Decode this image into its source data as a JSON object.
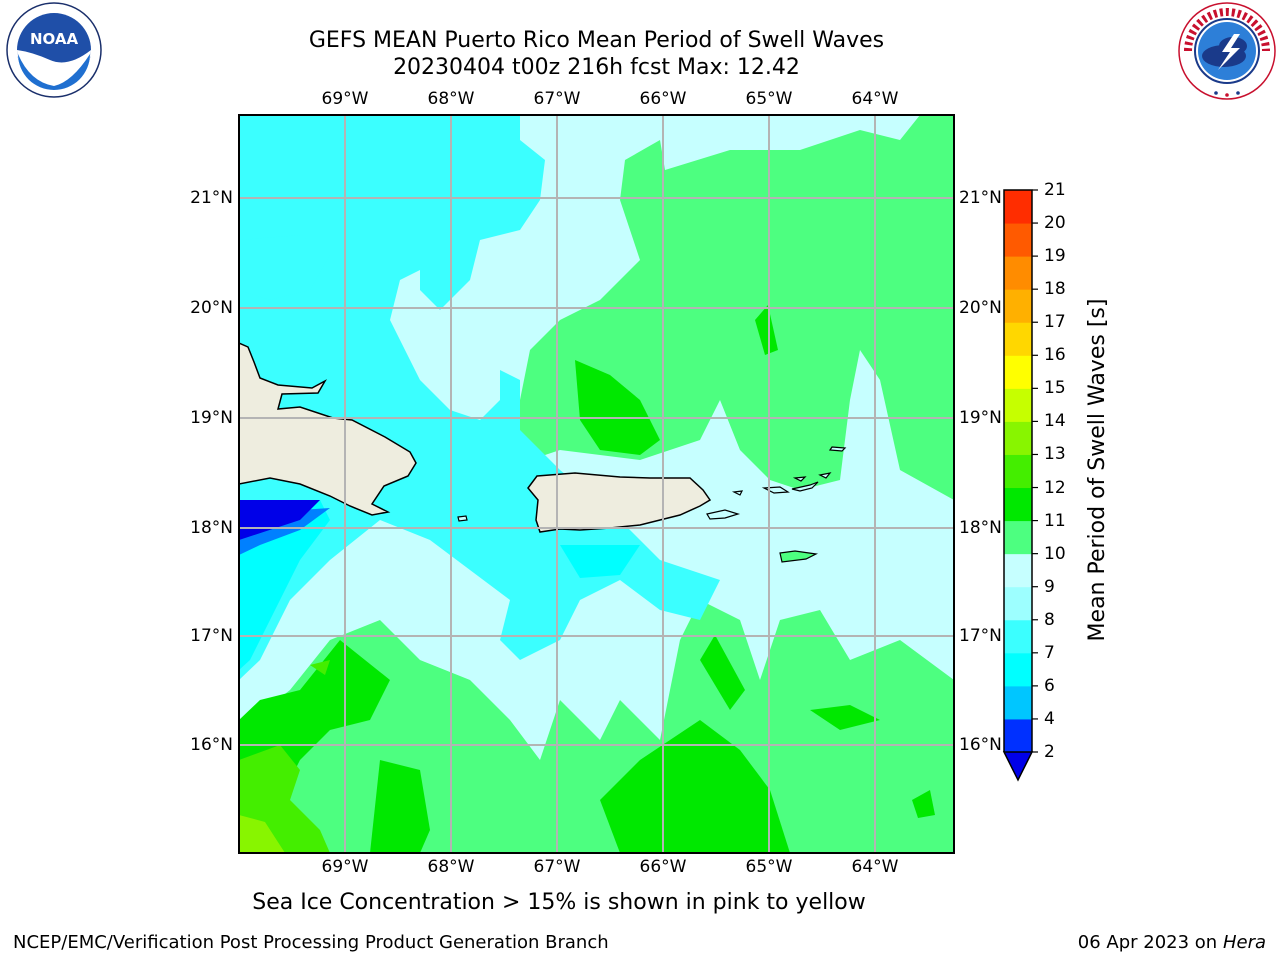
{
  "header": {
    "title_line1": "GEFS MEAN Puerto Rico Mean Period of Swell Waves",
    "title_line2": "20230404 t00z 216h fcst   Max: 12.42"
  },
  "logos": {
    "left_name": "NOAA",
    "left_ring_text": "NATIONAL OCEANIC AND ATMOSPHERIC ADMINISTRATION · U.S. DEPARTMENT OF COMMERCE",
    "right_ring_text": "NATIONAL WEATHER SERVICE"
  },
  "map": {
    "lon_labels": [
      "69°W",
      "68°W",
      "67°W",
      "66°W",
      "65°W",
      "64°W"
    ],
    "lat_labels": [
      "21°N",
      "20°N",
      "19°N",
      "18°N",
      "17°N",
      "16°N"
    ],
    "lon_range": [
      -70.0,
      -63.27
    ],
    "lat_range": [
      15.0,
      21.72
    ],
    "field": "Mean Period of Swell Waves",
    "units": "s",
    "max_value": 12.42
  },
  "colorbar": {
    "label": "Mean Period of Swell Waves [s]",
    "ticks": [
      "2",
      "4",
      "6",
      "7",
      "8",
      "9",
      "10",
      "11",
      "12",
      "13",
      "14",
      "15",
      "16",
      "17",
      "18",
      "19",
      "20",
      "21"
    ],
    "colors": [
      "#0030ff",
      "#00c6ff",
      "#00ffff",
      "#3bffff",
      "#9dffff",
      "#c6ffff",
      "#4dff80",
      "#00e800",
      "#44ee00",
      "#88f500",
      "#c6ff00",
      "#ffff00",
      "#ffd700",
      "#ffb000",
      "#ff8c00",
      "#ff5a00",
      "#ff2d00",
      "#ff0000"
    ],
    "extend_color": "#0000e8"
  },
  "note": "Sea Ice Concentration > 15% is shown in pink to yellow",
  "footer": {
    "left": "NCEP/EMC/Verification Post Processing Product Generation Branch",
    "right_date": "06 Apr 2023 on ",
    "right_machine": "Hera"
  }
}
